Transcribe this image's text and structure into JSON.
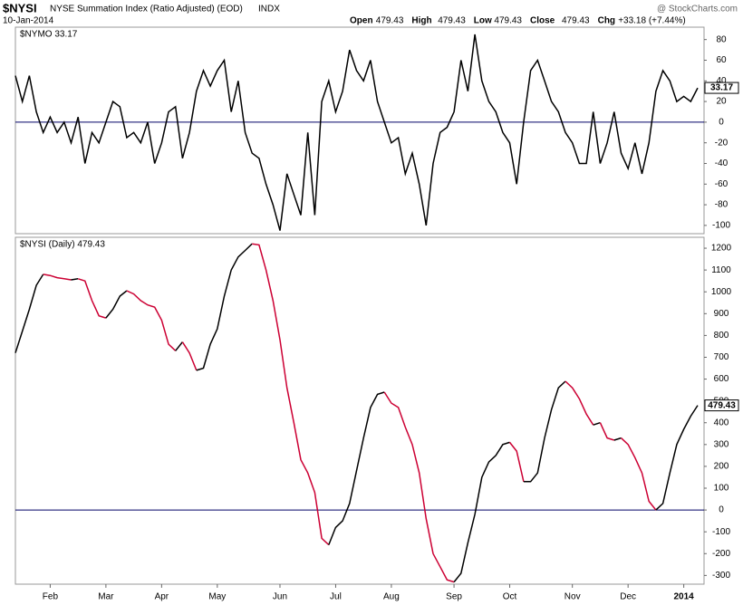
{
  "header": {
    "symbol": "$NYSI",
    "name": "NYSE Summation Index (Ratio Adjusted) (EOD)",
    "exchange": "INDX",
    "date": "10-Jan-2014",
    "credit": "@ StockCharts.com",
    "quote": [
      {
        "label": "Open",
        "value": 479.43
      },
      {
        "label": "High",
        "value": 479.43
      },
      {
        "label": "Low",
        "value": 479.43
      },
      {
        "label": "Close",
        "value": 479.43
      }
    ],
    "change_label": "Chg",
    "change": "+33.18 (+7.44%)"
  },
  "chart_data": [
    {
      "type": "line",
      "legend": "$NYMO 33.17",
      "color": "#000000",
      "zero_line": true,
      "zero_color": "#000066",
      "ylim": [
        -108,
        92
      ],
      "yticks": [
        80,
        60,
        40,
        20,
        0,
        -20,
        -40,
        -60,
        -80,
        -100
      ],
      "values": [
        45,
        20,
        45,
        10,
        -10,
        5,
        -10,
        0,
        -20,
        5,
        -40,
        -10,
        -20,
        0,
        20,
        15,
        -15,
        -10,
        -20,
        0,
        -40,
        -20,
        10,
        15,
        -35,
        -10,
        30,
        50,
        35,
        50,
        60,
        10,
        40,
        -10,
        -30,
        -35,
        -60,
        -80,
        -105,
        -50,
        -70,
        -90,
        -10,
        -90,
        20,
        40,
        10,
        30,
        70,
        50,
        40,
        60,
        20,
        0,
        -20,
        -15,
        -50,
        -30,
        -60,
        -100,
        -40,
        -10,
        -5,
        10,
        60,
        30,
        85,
        40,
        20,
        10,
        -10,
        -20,
        -60,
        0,
        50,
        60,
        40,
        20,
        10,
        -10,
        -20,
        -40,
        -40,
        10,
        -40,
        -20,
        10,
        -30,
        -45,
        -20,
        -50,
        -20,
        30,
        50,
        40,
        20,
        25,
        20,
        33.17
      ]
    },
    {
      "type": "direction_line",
      "legend": "$NYSI (Daily) 479.43",
      "up_color": "#000000",
      "down_color": "#cc0033",
      "zero_line": true,
      "zero_color": "#000066",
      "ylim": [
        -340,
        1250
      ],
      "yticks": [
        1200,
        1100,
        1000,
        900,
        800,
        700,
        600,
        500,
        400,
        300,
        200,
        100,
        0,
        -100,
        -200,
        -300
      ],
      "categories": [
        null,
        null,
        null,
        null,
        null,
        "Feb",
        null,
        null,
        null,
        null,
        null,
        null,
        null,
        "Mar",
        null,
        null,
        null,
        null,
        null,
        null,
        null,
        "Apr",
        null,
        null,
        null,
        null,
        null,
        null,
        null,
        "May",
        null,
        null,
        null,
        null,
        null,
        null,
        null,
        null,
        "Jun",
        null,
        null,
        null,
        null,
        null,
        null,
        null,
        "Jul",
        null,
        null,
        null,
        null,
        null,
        null,
        null,
        "Aug",
        null,
        null,
        null,
        null,
        null,
        null,
        null,
        null,
        "Sep",
        null,
        null,
        null,
        null,
        null,
        null,
        null,
        "Oct",
        null,
        null,
        null,
        null,
        null,
        null,
        null,
        null,
        "Nov",
        null,
        null,
        null,
        null,
        null,
        null,
        null,
        "Dec",
        null,
        null,
        null,
        null,
        null,
        null,
        null,
        "2014",
        null,
        null
      ],
      "values": [
        720,
        820,
        920,
        1030,
        1080,
        1075,
        1065,
        1060,
        1055,
        1060,
        1050,
        960,
        890,
        880,
        920,
        980,
        1005,
        990,
        960,
        940,
        930,
        870,
        760,
        730,
        770,
        720,
        640,
        650,
        760,
        830,
        980,
        1100,
        1160,
        1190,
        1220,
        1215,
        1100,
        960,
        780,
        560,
        400,
        230,
        170,
        80,
        -130,
        -160,
        -80,
        -50,
        30,
        180,
        330,
        470,
        530,
        540,
        490,
        470,
        380,
        300,
        170,
        -40,
        -200,
        -260,
        -320,
        -330,
        -290,
        -150,
        -20,
        150,
        220,
        250,
        300,
        310,
        270,
        130,
        130,
        170,
        330,
        460,
        560,
        590,
        560,
        510,
        440,
        390,
        400,
        330,
        320,
        330,
        300,
        240,
        170,
        40,
        0,
        30,
        170,
        300,
        370,
        430,
        479.43
      ]
    }
  ]
}
